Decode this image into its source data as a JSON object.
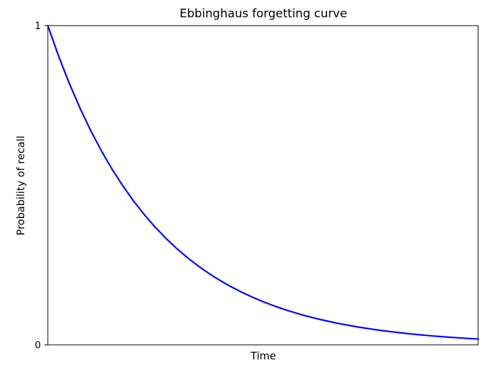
{
  "chart_data": {
    "type": "line",
    "title": "Ebbinghaus forgetting curve",
    "xlabel": "Time",
    "ylabel": "Probability of recall",
    "xlim": [
      0,
      1
    ],
    "ylim": [
      0,
      1
    ],
    "x_ticks": [],
    "y_ticks": [
      {
        "value": 0,
        "label": "0"
      },
      {
        "value": 1,
        "label": "1"
      }
    ],
    "grid": false,
    "series": [
      {
        "color": "#0000ff",
        "x": [
          0,
          0.025,
          0.05,
          0.075,
          0.1,
          0.125,
          0.15,
          0.175,
          0.2,
          0.225,
          0.25,
          0.275,
          0.3,
          0.325,
          0.35,
          0.375,
          0.4,
          0.425,
          0.45,
          0.475,
          0.5,
          0.525,
          0.55,
          0.575,
          0.6,
          0.625,
          0.65,
          0.675,
          0.7,
          0.725,
          0.75,
          0.775,
          0.8,
          0.825,
          0.85,
          0.875,
          0.9,
          0.925,
          0.95,
          0.975,
          1
        ],
        "y": [
          1,
          0.9048,
          0.8187,
          0.7408,
          0.6703,
          0.6065,
          0.5488,
          0.4966,
          0.4493,
          0.4066,
          0.3679,
          0.3329,
          0.3012,
          0.2725,
          0.2466,
          0.2231,
          0.2019,
          0.1827,
          0.1653,
          0.1496,
          0.1353,
          0.1225,
          0.1108,
          0.1003,
          0.0907,
          0.0821,
          0.0743,
          0.0672,
          0.0608,
          0.055,
          0.0498,
          0.045,
          0.0408,
          0.0369,
          0.0334,
          0.0302,
          0.0273,
          0.0247,
          0.0224,
          0.0202,
          0.0183
        ]
      }
    ]
  }
}
